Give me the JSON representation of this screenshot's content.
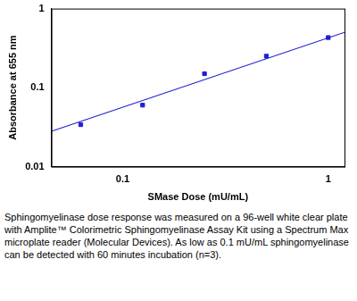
{
  "chart_data": {
    "type": "scatter",
    "x_label": "SMase Dose (mU/mL)",
    "y_label": "Absorbance at 655 nm",
    "x": [
      0.0625,
      0.125,
      0.25,
      0.5,
      1
    ],
    "values": [
      0.034,
      0.06,
      0.15,
      0.25,
      0.43
    ],
    "color": "#1f1fd6",
    "marker": "square",
    "trend_line": {
      "x": [
        0.045,
        1.2
      ],
      "values": [
        0.028,
        0.5
      ],
      "color": "#1f1fd6",
      "line_style": "solid"
    },
    "log": true,
    "grid": false,
    "xlim": [
      0.045,
      1.2
    ],
    "xticks": [
      0.1,
      1
    ],
    "ylim": [
      0.01,
      1
    ],
    "yticks": [
      0.01,
      0.1,
      1
    ],
    "caption": "Sphingomyelinase dose response was measured on a 96-well white clear plate with Amplite™ Colorimetric Sphingomyelinase Assay Kit using a Spectrum Max microplate reader (Molecular Devices). As low as 0.1 mU/mL sphingomyelinase can be detected with 60 minutes incubation (n=3)."
  }
}
